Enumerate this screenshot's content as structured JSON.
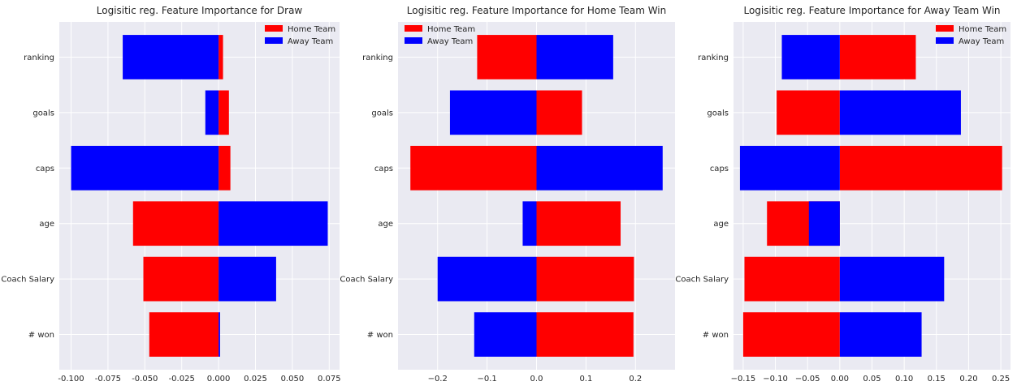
{
  "colors": {
    "home": "#ff0000",
    "away": "#0000ff",
    "plot_bg": "#eaeaf2",
    "grid": "#ffffff"
  },
  "chart_data": [
    {
      "type": "bar",
      "orientation": "horizontal",
      "title": "Logisitic reg. Feature Importance for Draw",
      "categories": [
        "ranking",
        "goals",
        "caps",
        "age",
        "Coach Salary",
        "# won"
      ],
      "series": [
        {
          "name": "Home Team",
          "values": [
            0.003,
            0.007,
            0.008,
            -0.058,
            -0.051,
            -0.047
          ]
        },
        {
          "name": "Away Team",
          "values": [
            -0.065,
            -0.009,
            -0.1,
            0.074,
            0.039,
            0.001
          ]
        }
      ],
      "xlim": [
        -0.108,
        0.082
      ],
      "xticks": [
        "-0.100",
        "-0.075",
        "-0.050",
        "-0.025",
        "0.000",
        "0.025",
        "0.050",
        "0.075"
      ],
      "xtick_values": [
        -0.1,
        -0.075,
        -0.05,
        -0.025,
        0.0,
        0.025,
        0.05,
        0.075
      ],
      "legend": "upper-right",
      "grid": true
    },
    {
      "type": "bar",
      "orientation": "horizontal",
      "title": "Logisitic reg. Feature Importance for Home Team Win",
      "categories": [
        "ranking",
        "goals",
        "caps",
        "age",
        "Coach Salary",
        "# won"
      ],
      "series": [
        {
          "name": "Home Team",
          "values": [
            -0.12,
            0.092,
            -0.255,
            0.17,
            0.197,
            0.196
          ]
        },
        {
          "name": "Away Team",
          "values": [
            0.155,
            -0.175,
            0.255,
            -0.028,
            -0.2,
            -0.126
          ]
        }
      ],
      "xlim": [
        -0.28,
        0.28
      ],
      "xticks": [
        "−0.2",
        "−0.1",
        "0.0",
        "0.1",
        "0.2"
      ],
      "xtick_values": [
        -0.2,
        -0.1,
        0.0,
        0.1,
        0.2
      ],
      "legend": "upper-left",
      "grid": true
    },
    {
      "type": "bar",
      "orientation": "horizontal",
      "title": "Logisitic reg. Feature Importance for Away Team Win",
      "categories": [
        "ranking",
        "goals",
        "caps",
        "age",
        "Coach Salary",
        "# won"
      ],
      "series": [
        {
          "name": "Home Team",
          "values": [
            0.118,
            -0.098,
            0.252,
            -0.113,
            -0.148,
            -0.15
          ]
        },
        {
          "name": "Away Team",
          "values": [
            -0.09,
            0.188,
            -0.155,
            -0.048,
            0.162,
            0.127
          ]
        }
      ],
      "xlim": [
        -0.165,
        0.265
      ],
      "xticks": [
        "−0.15",
        "−0.10",
        "−0.05",
        "0.00",
        "0.05",
        "0.10",
        "0.15",
        "0.20",
        "0.25"
      ],
      "xtick_values": [
        -0.15,
        -0.1,
        -0.05,
        0.0,
        0.05,
        0.1,
        0.15,
        0.2,
        0.25
      ],
      "legend": "upper-right",
      "grid": true
    }
  ]
}
